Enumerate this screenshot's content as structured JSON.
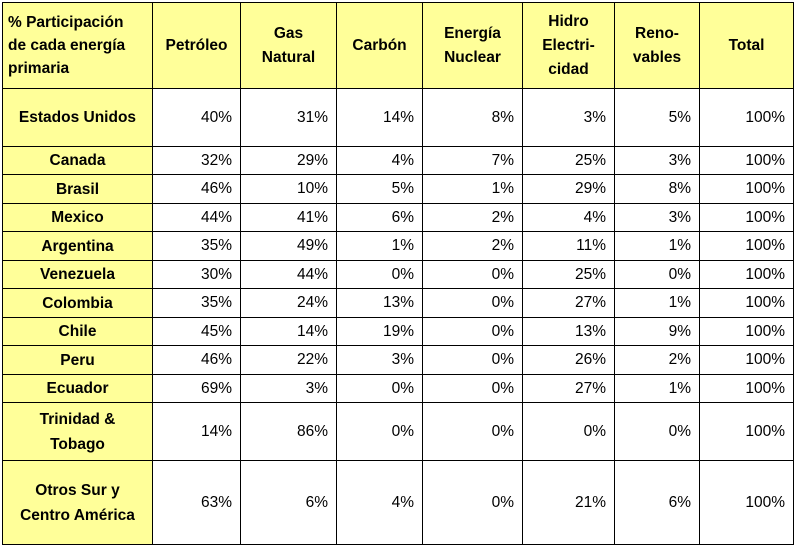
{
  "table": {
    "corner_label": "% Participación\nde cada energía\nprimaria",
    "columns": [
      "Petróleo",
      "Gas\nNatural",
      "Carbón",
      "Energía\nNuclear",
      "Hidro\nElectri-\ncidad",
      "Reno-\nvables",
      "Total"
    ],
    "rows": [
      {
        "name": "Estados Unidos",
        "values": [
          "40%",
          "31%",
          "14%",
          "8%",
          "3%",
          "5%",
          "100%"
        ]
      },
      {
        "name": "Canada",
        "values": [
          "32%",
          "29%",
          "4%",
          "7%",
          "25%",
          "3%",
          "100%"
        ]
      },
      {
        "name": "Brasil",
        "values": [
          "46%",
          "10%",
          "5%",
          "1%",
          "29%",
          "8%",
          "100%"
        ]
      },
      {
        "name": "Mexico",
        "values": [
          "44%",
          "41%",
          "6%",
          "2%",
          "4%",
          "3%",
          "100%"
        ]
      },
      {
        "name": "Argentina",
        "values": [
          "35%",
          "49%",
          "1%",
          "2%",
          "11%",
          "1%",
          "100%"
        ]
      },
      {
        "name": "Venezuela",
        "values": [
          "30%",
          "44%",
          "0%",
          "0%",
          "25%",
          "0%",
          "100%"
        ]
      },
      {
        "name": "Colombia",
        "values": [
          "35%",
          "24%",
          "13%",
          "0%",
          "27%",
          "1%",
          "100%"
        ]
      },
      {
        "name": "Chile",
        "values": [
          "45%",
          "14%",
          "19%",
          "0%",
          "13%",
          "9%",
          "100%"
        ]
      },
      {
        "name": "Peru",
        "values": [
          "46%",
          "22%",
          "3%",
          "0%",
          "26%",
          "2%",
          "100%"
        ]
      },
      {
        "name": "Ecuador",
        "values": [
          "69%",
          "3%",
          "0%",
          "0%",
          "27%",
          "1%",
          "100%"
        ]
      },
      {
        "name": "Trinidad &\nTobago",
        "values": [
          "14%",
          "86%",
          "0%",
          "0%",
          "0%",
          "0%",
          "100%"
        ]
      },
      {
        "name": "Otros Sur y\nCentro América",
        "values": [
          "63%",
          "6%",
          "4%",
          "0%",
          "21%",
          "6%",
          "100%"
        ]
      }
    ]
  },
  "colors": {
    "header_fill": "#ffff99",
    "cell_fill": "#ffffff",
    "border": "#000000"
  }
}
